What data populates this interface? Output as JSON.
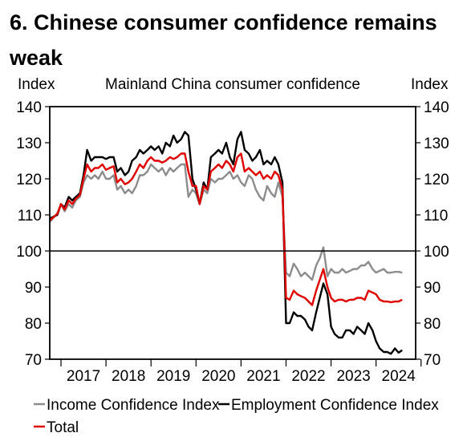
{
  "title": "6. Chinese consumer confidence remains weak",
  "chart_data": {
    "type": "line",
    "title": "Mainland China consumer confidence",
    "ylabel_left": "Index",
    "ylabel_right": "Index",
    "ylim": [
      70,
      140
    ],
    "yticks": [
      70,
      80,
      90,
      100,
      110,
      120,
      130,
      140
    ],
    "x_tick_labels": [
      "2017",
      "2018",
      "2019",
      "2020",
      "2021",
      "2022",
      "2023",
      "2024"
    ],
    "x_range": [
      2016.75,
      2024.88
    ],
    "reference_line": 100,
    "grid": false,
    "legend_position": "bottom",
    "series": [
      {
        "name": "Income Confidence Index",
        "color": "#8c8c8c",
        "points": [
          [
            2016.75,
            108
          ],
          [
            2016.92,
            110.5
          ],
          [
            2017.0,
            113
          ],
          [
            2017.08,
            111
          ],
          [
            2017.17,
            113
          ],
          [
            2017.25,
            112
          ],
          [
            2017.33,
            114
          ],
          [
            2017.42,
            115
          ],
          [
            2017.5,
            119
          ],
          [
            2017.58,
            121
          ],
          [
            2017.67,
            120
          ],
          [
            2017.75,
            121
          ],
          [
            2017.83,
            120
          ],
          [
            2017.92,
            122
          ],
          [
            2018.0,
            120
          ],
          [
            2018.08,
            120
          ],
          [
            2018.17,
            121
          ],
          [
            2018.25,
            117
          ],
          [
            2018.33,
            118
          ],
          [
            2018.42,
            116
          ],
          [
            2018.5,
            117
          ],
          [
            2018.58,
            116
          ],
          [
            2018.67,
            118
          ],
          [
            2018.75,
            121
          ],
          [
            2018.83,
            121
          ],
          [
            2018.92,
            122
          ],
          [
            2019.0,
            124
          ],
          [
            2019.08,
            123
          ],
          [
            2019.17,
            122
          ],
          [
            2019.25,
            123
          ],
          [
            2019.33,
            121
          ],
          [
            2019.42,
            123
          ],
          [
            2019.5,
            122
          ],
          [
            2019.58,
            123
          ],
          [
            2019.67,
            124
          ],
          [
            2019.75,
            124
          ],
          [
            2019.83,
            115
          ],
          [
            2019.92,
            117
          ],
          [
            2020.0,
            116
          ],
          [
            2020.08,
            113
          ],
          [
            2020.17,
            117
          ],
          [
            2020.25,
            116
          ],
          [
            2020.33,
            120
          ],
          [
            2020.42,
            119
          ],
          [
            2020.5,
            120
          ],
          [
            2020.58,
            120
          ],
          [
            2020.67,
            121
          ],
          [
            2020.75,
            122
          ],
          [
            2020.83,
            120
          ],
          [
            2020.92,
            121
          ],
          [
            2021.0,
            119
          ],
          [
            2021.08,
            118
          ],
          [
            2021.17,
            121
          ],
          [
            2021.25,
            120
          ],
          [
            2021.33,
            117
          ],
          [
            2021.42,
            115
          ],
          [
            2021.5,
            114
          ],
          [
            2021.58,
            118
          ],
          [
            2021.67,
            116
          ],
          [
            2021.75,
            115
          ],
          [
            2021.83,
            119
          ],
          [
            2021.92,
            115
          ],
          [
            2022.0,
            94
          ],
          [
            2022.08,
            93
          ],
          [
            2022.17,
            96.5
          ],
          [
            2022.25,
            95
          ],
          [
            2022.33,
            93
          ],
          [
            2022.42,
            94
          ],
          [
            2022.5,
            93
          ],
          [
            2022.58,
            92
          ],
          [
            2022.67,
            96
          ],
          [
            2022.75,
            98
          ],
          [
            2022.83,
            101
          ],
          [
            2022.92,
            93
          ],
          [
            2023.0,
            95
          ],
          [
            2023.08,
            94
          ],
          [
            2023.17,
            94
          ],
          [
            2023.25,
            95
          ],
          [
            2023.33,
            94
          ],
          [
            2023.42,
            94.5
          ],
          [
            2023.5,
            95
          ],
          [
            2023.58,
            95
          ],
          [
            2023.67,
            96
          ],
          [
            2023.75,
            96
          ],
          [
            2023.83,
            97
          ],
          [
            2023.92,
            95
          ],
          [
            2024.0,
            94
          ],
          [
            2024.08,
            94.5
          ],
          [
            2024.17,
            95
          ],
          [
            2024.25,
            94
          ],
          [
            2024.33,
            94
          ],
          [
            2024.42,
            94.2
          ],
          [
            2024.5,
            94.2
          ],
          [
            2024.58,
            94
          ]
        ]
      },
      {
        "name": "Employment Confidence Index",
        "color": "#000000",
        "points": [
          [
            2016.75,
            109
          ],
          [
            2016.92,
            110
          ],
          [
            2017.0,
            113
          ],
          [
            2017.08,
            112
          ],
          [
            2017.17,
            115
          ],
          [
            2017.25,
            114
          ],
          [
            2017.33,
            115
          ],
          [
            2017.42,
            116
          ],
          [
            2017.5,
            121
          ],
          [
            2017.58,
            128
          ],
          [
            2017.67,
            125
          ],
          [
            2017.75,
            126
          ],
          [
            2017.83,
            126
          ],
          [
            2017.92,
            126
          ],
          [
            2018.0,
            125.5
          ],
          [
            2018.08,
            126
          ],
          [
            2018.17,
            126
          ],
          [
            2018.25,
            122
          ],
          [
            2018.33,
            123
          ],
          [
            2018.42,
            121
          ],
          [
            2018.5,
            122
          ],
          [
            2018.58,
            125
          ],
          [
            2018.67,
            126
          ],
          [
            2018.75,
            128
          ],
          [
            2018.83,
            127
          ],
          [
            2018.92,
            128
          ],
          [
            2019.0,
            129
          ],
          [
            2019.08,
            128
          ],
          [
            2019.17,
            129
          ],
          [
            2019.25,
            127
          ],
          [
            2019.33,
            130
          ],
          [
            2019.42,
            129
          ],
          [
            2019.5,
            132
          ],
          [
            2019.58,
            130
          ],
          [
            2019.67,
            131
          ],
          [
            2019.75,
            133
          ],
          [
            2019.83,
            132
          ],
          [
            2019.92,
            120
          ],
          [
            2020.0,
            117
          ],
          [
            2020.08,
            113
          ],
          [
            2020.17,
            119
          ],
          [
            2020.25,
            117
          ],
          [
            2020.33,
            126
          ],
          [
            2020.42,
            127
          ],
          [
            2020.5,
            128
          ],
          [
            2020.58,
            127
          ],
          [
            2020.67,
            130
          ],
          [
            2020.75,
            126
          ],
          [
            2020.83,
            124
          ],
          [
            2020.92,
            131
          ],
          [
            2021.0,
            133
          ],
          [
            2021.08,
            128
          ],
          [
            2021.17,
            127
          ],
          [
            2021.25,
            125
          ],
          [
            2021.33,
            126
          ],
          [
            2021.42,
            128
          ],
          [
            2021.5,
            124
          ],
          [
            2021.58,
            125
          ],
          [
            2021.67,
            124
          ],
          [
            2021.75,
            126
          ],
          [
            2021.83,
            124
          ],
          [
            2021.92,
            119
          ],
          [
            2022.0,
            80
          ],
          [
            2022.08,
            80
          ],
          [
            2022.17,
            83
          ],
          [
            2022.25,
            82
          ],
          [
            2022.33,
            82
          ],
          [
            2022.42,
            81
          ],
          [
            2022.5,
            79
          ],
          [
            2022.58,
            78
          ],
          [
            2022.67,
            83
          ],
          [
            2022.75,
            87
          ],
          [
            2022.83,
            91
          ],
          [
            2022.92,
            88
          ],
          [
            2023.0,
            79
          ],
          [
            2023.08,
            77
          ],
          [
            2023.17,
            76
          ],
          [
            2023.25,
            76
          ],
          [
            2023.33,
            78
          ],
          [
            2023.42,
            78
          ],
          [
            2023.5,
            77
          ],
          [
            2023.58,
            79
          ],
          [
            2023.67,
            78
          ],
          [
            2023.75,
            77
          ],
          [
            2023.83,
            80
          ],
          [
            2023.92,
            78
          ],
          [
            2024.0,
            75
          ],
          [
            2024.08,
            73
          ],
          [
            2024.17,
            72
          ],
          [
            2024.25,
            72
          ],
          [
            2024.33,
            71.5
          ],
          [
            2024.42,
            73
          ],
          [
            2024.5,
            71.8
          ],
          [
            2024.58,
            72.5
          ]
        ]
      },
      {
        "name": "Total",
        "color": "#e00000",
        "points": [
          [
            2016.75,
            108.5
          ],
          [
            2016.92,
            110.3
          ],
          [
            2017.0,
            113
          ],
          [
            2017.08,
            111.5
          ],
          [
            2017.17,
            114
          ],
          [
            2017.25,
            113
          ],
          [
            2017.33,
            114.5
          ],
          [
            2017.42,
            115.5
          ],
          [
            2017.5,
            120
          ],
          [
            2017.58,
            124
          ],
          [
            2017.67,
            122
          ],
          [
            2017.75,
            123
          ],
          [
            2017.83,
            123
          ],
          [
            2017.92,
            124
          ],
          [
            2018.0,
            122.5
          ],
          [
            2018.08,
            123
          ],
          [
            2018.17,
            123.5
          ],
          [
            2018.25,
            119
          ],
          [
            2018.33,
            120
          ],
          [
            2018.42,
            118.5
          ],
          [
            2018.5,
            119
          ],
          [
            2018.58,
            120
          ],
          [
            2018.67,
            122
          ],
          [
            2018.75,
            124
          ],
          [
            2018.83,
            123
          ],
          [
            2018.92,
            125
          ],
          [
            2019.0,
            126
          ],
          [
            2019.08,
            125
          ],
          [
            2019.17,
            125
          ],
          [
            2019.25,
            124.5
          ],
          [
            2019.33,
            125
          ],
          [
            2019.42,
            126
          ],
          [
            2019.5,
            125.5
          ],
          [
            2019.58,
            126
          ],
          [
            2019.67,
            127
          ],
          [
            2019.75,
            127
          ],
          [
            2019.83,
            122
          ],
          [
            2019.92,
            118
          ],
          [
            2020.0,
            118
          ],
          [
            2020.08,
            113
          ],
          [
            2020.17,
            118
          ],
          [
            2020.25,
            117
          ],
          [
            2020.33,
            122
          ],
          [
            2020.42,
            123
          ],
          [
            2020.5,
            124
          ],
          [
            2020.58,
            123
          ],
          [
            2020.67,
            125
          ],
          [
            2020.75,
            124
          ],
          [
            2020.83,
            122
          ],
          [
            2020.92,
            126
          ],
          [
            2021.0,
            127
          ],
          [
            2021.08,
            122
          ],
          [
            2021.17,
            123
          ],
          [
            2021.25,
            122
          ],
          [
            2021.33,
            121
          ],
          [
            2021.42,
            122
          ],
          [
            2021.5,
            120
          ],
          [
            2021.58,
            121
          ],
          [
            2021.67,
            120
          ],
          [
            2021.75,
            122
          ],
          [
            2021.83,
            121
          ],
          [
            2021.92,
            117
          ],
          [
            2022.0,
            87
          ],
          [
            2022.08,
            86.5
          ],
          [
            2022.17,
            89
          ],
          [
            2022.25,
            88
          ],
          [
            2022.33,
            87.5
          ],
          [
            2022.42,
            87
          ],
          [
            2022.5,
            86
          ],
          [
            2022.58,
            85
          ],
          [
            2022.67,
            89
          ],
          [
            2022.75,
            92
          ],
          [
            2022.83,
            95
          ],
          [
            2022.92,
            90
          ],
          [
            2023.0,
            87
          ],
          [
            2023.08,
            86
          ],
          [
            2023.17,
            86.5
          ],
          [
            2023.25,
            86.5
          ],
          [
            2023.33,
            86
          ],
          [
            2023.42,
            86.5
          ],
          [
            2023.5,
            86.5
          ],
          [
            2023.58,
            87
          ],
          [
            2023.67,
            87
          ],
          [
            2023.75,
            86.5
          ],
          [
            2023.83,
            89
          ],
          [
            2023.92,
            88.5
          ],
          [
            2024.0,
            88
          ],
          [
            2024.08,
            86.5
          ],
          [
            2024.17,
            86
          ],
          [
            2024.25,
            86
          ],
          [
            2024.33,
            85.8
          ],
          [
            2024.42,
            86
          ],
          [
            2024.5,
            86
          ],
          [
            2024.58,
            86.5
          ]
        ]
      }
    ],
    "legend": [
      "Income Confidence Index",
      "Employment Confidence Index",
      "Total"
    ]
  }
}
